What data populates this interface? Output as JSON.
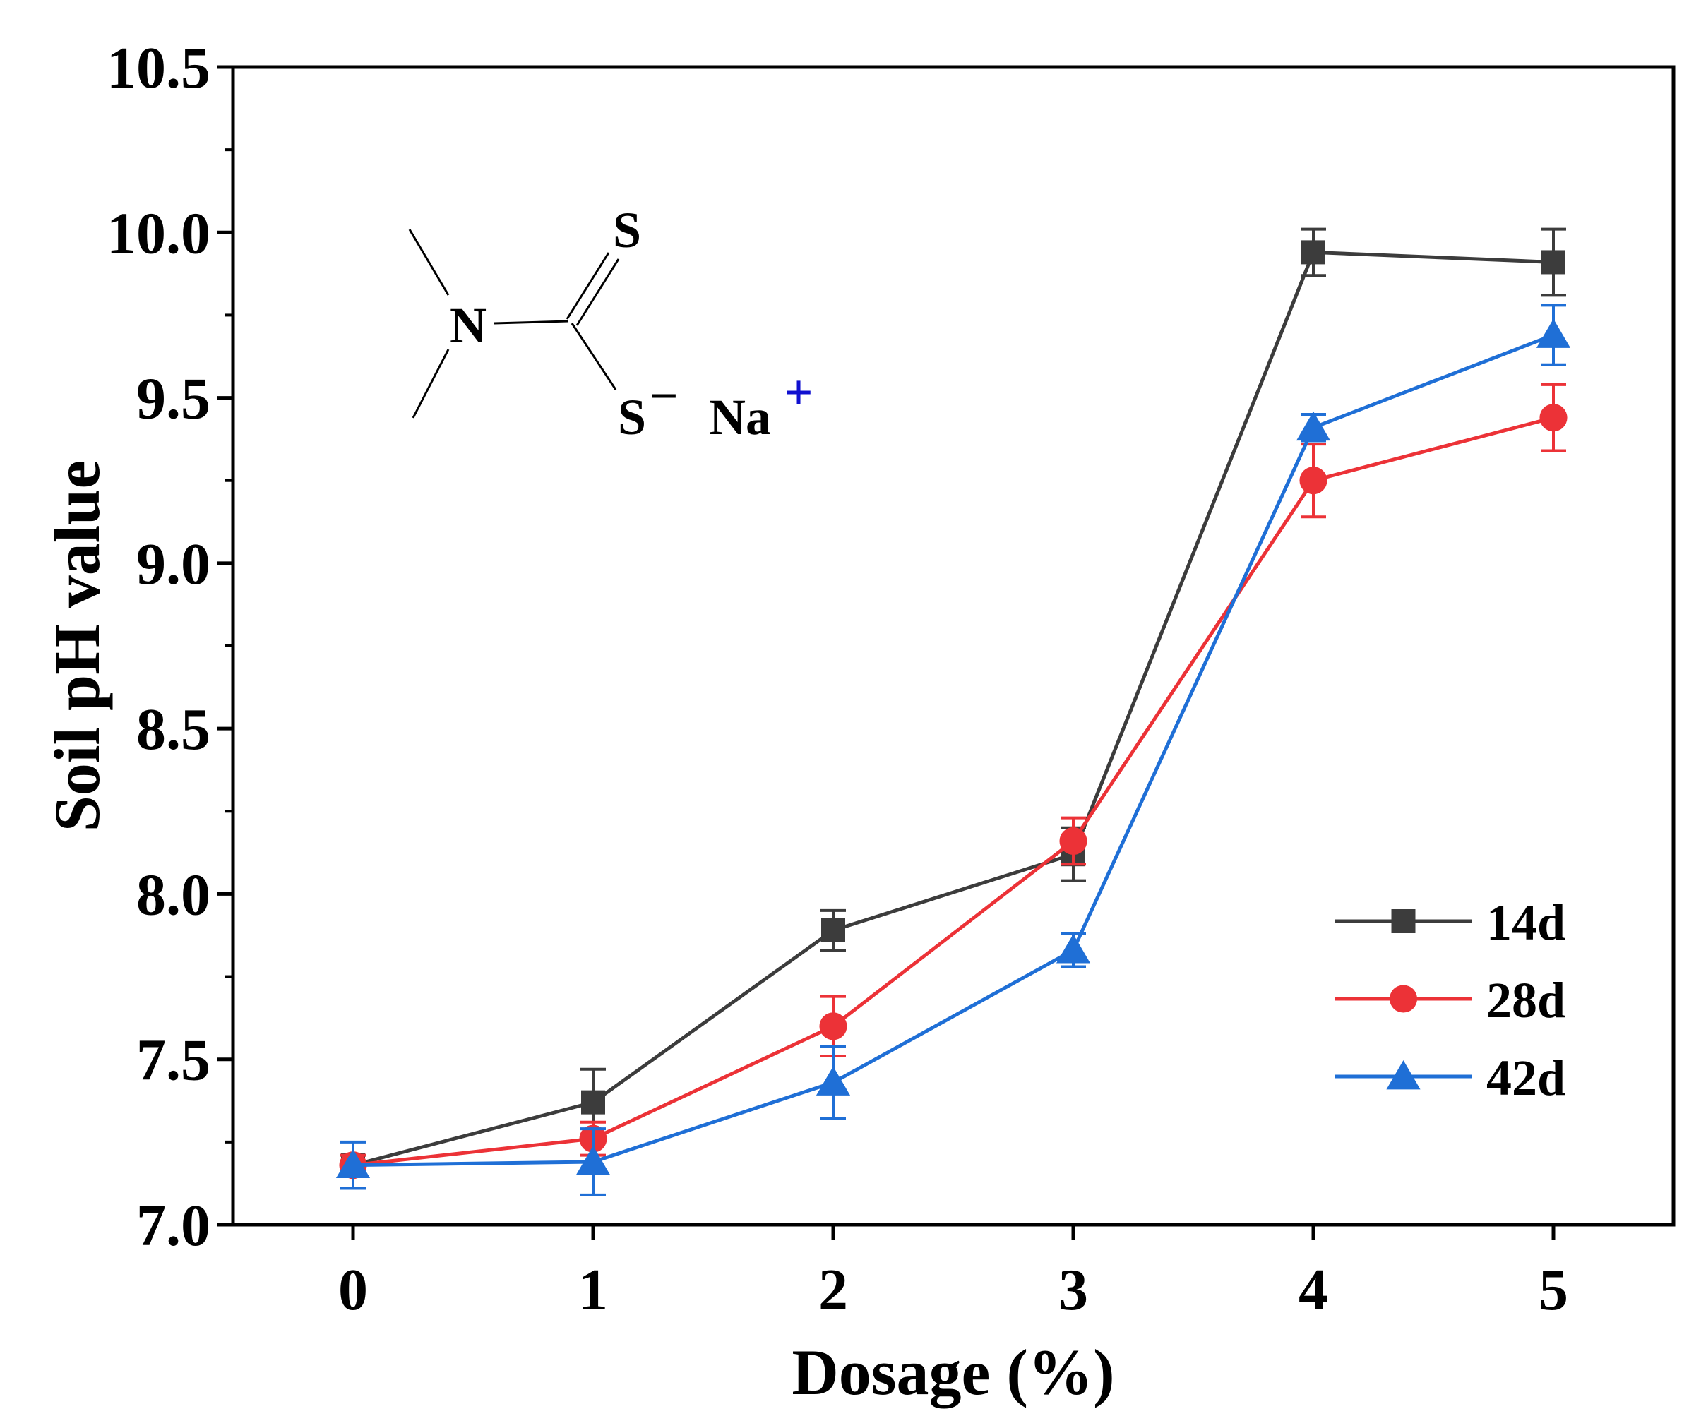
{
  "chart_data": {
    "type": "line",
    "title": "",
    "xlabel": "Dosage (%)",
    "ylabel": "Soil pH value",
    "x": [
      0,
      1,
      2,
      3,
      4,
      5
    ],
    "xticks": [
      "0",
      "1",
      "2",
      "3",
      "4",
      "5"
    ],
    "yticks": [
      "7.0",
      "7.5",
      "8.0",
      "8.5",
      "9.0",
      "9.5",
      "10.0",
      "10.5"
    ],
    "xlim": [
      -0.5,
      5.5
    ],
    "ylim": [
      7.0,
      10.5
    ],
    "grid": false,
    "legend_position": "bottom-right",
    "series": [
      {
        "name": "14d",
        "color": "#3c3c3c",
        "marker": "square",
        "values": [
          7.18,
          7.37,
          7.89,
          8.12,
          9.94,
          9.91
        ],
        "errors": [
          0.03,
          0.1,
          0.06,
          0.08,
          0.07,
          0.1
        ]
      },
      {
        "name": "28d",
        "color": "#ec3237",
        "marker": "circle",
        "values": [
          7.18,
          7.26,
          7.6,
          8.16,
          9.25,
          9.44
        ],
        "errors": [
          0.03,
          0.05,
          0.09,
          0.07,
          0.11,
          0.1
        ]
      },
      {
        "name": "42d",
        "color": "#1f6fd6",
        "marker": "triangle",
        "values": [
          7.18,
          7.19,
          7.43,
          7.83,
          9.41,
          9.69
        ],
        "errors": [
          0.07,
          0.1,
          0.11,
          0.05,
          0.04,
          0.09
        ]
      }
    ],
    "annotation": {
      "atom_N": "N",
      "atom_S_double": "S",
      "atom_S_single": "S",
      "minus_sign": "−",
      "counterion": "Na",
      "plus_sign": "+",
      "charge_color": "#1010d0"
    }
  }
}
